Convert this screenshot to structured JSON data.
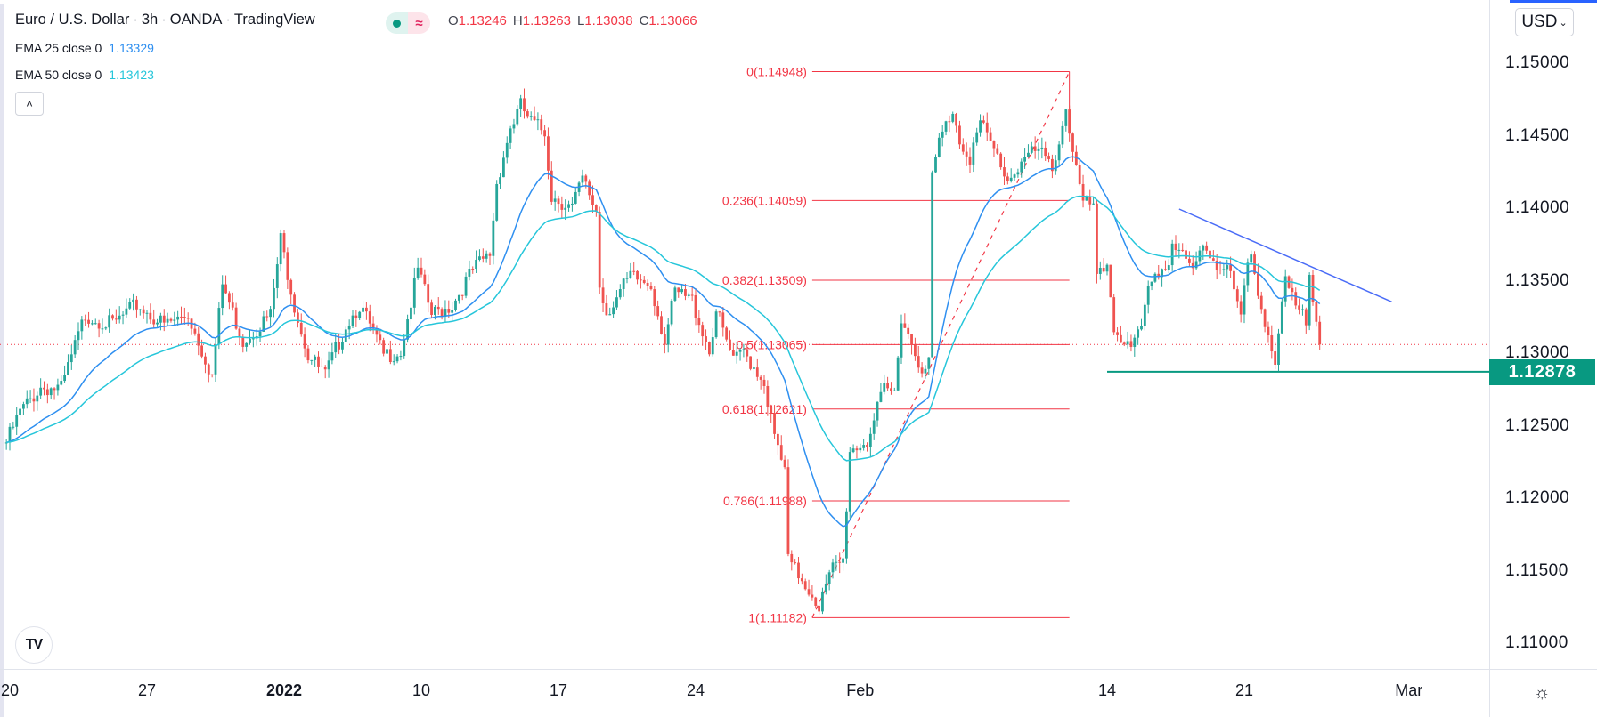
{
  "header": {
    "symbol": "Euro / U.S. Dollar",
    "interval": "3h",
    "exchange": "OANDA",
    "source": "TradingView",
    "separator": "·",
    "status_icon": "market-open-dot",
    "data_icon": "≈",
    "ohlc": [
      {
        "key": "O",
        "value": "1.13246"
      },
      {
        "key": "H",
        "value": "1.13263"
      },
      {
        "key": "L",
        "value": "1.13038"
      },
      {
        "key": "C",
        "value": "1.13066"
      }
    ]
  },
  "indicators": [
    {
      "label": "EMA 25 close 0",
      "value": "1.13329",
      "color": "#2e8ff0"
    },
    {
      "label": "EMA 50 close 0",
      "value": "1.13423",
      "color": "#26c6da"
    }
  ],
  "collapse_button": "˄",
  "currency_button": {
    "label": "USD",
    "chevron": "⌄"
  },
  "settings_icon": "☼",
  "logo": "TV",
  "colors": {
    "up": "#26a69a",
    "down": "#ef5350",
    "fib": "#f23645",
    "trendline": "#4a6cf7",
    "support": "#089981",
    "last_price": "#f23645"
  },
  "chart_data": {
    "type": "candlestick",
    "interval": "3h",
    "price_ticks": [
      "1.15000",
      "1.14500",
      "1.14000",
      "1.13500",
      "1.13000",
      "1.12500",
      "1.12000",
      "1.11500",
      "1.11000"
    ],
    "ylim": [
      1.108,
      1.152
    ],
    "time_ticks": [
      {
        "label": "20",
        "date": "2021-12-20"
      },
      {
        "label": "27",
        "date": "2021-12-27"
      },
      {
        "label": "2022",
        "date": "2022-01-03",
        "bold": true
      },
      {
        "label": "10",
        "date": "2022-01-10"
      },
      {
        "label": "17",
        "date": "2022-01-17"
      },
      {
        "label": "24",
        "date": "2022-01-24"
      },
      {
        "label": "Feb",
        "date": "2022-02-01"
      },
      {
        "label": "14",
        "date": "2022-02-14"
      },
      {
        "label": "21",
        "date": "2022-02-21"
      },
      {
        "label": "Mar",
        "date": "2022-03-01"
      }
    ],
    "approx_close_path": [
      [
        "2021-12-17 21:00",
        1.1239
      ],
      [
        "2021-12-20 09:00",
        1.126
      ],
      [
        "2021-12-21 03:00",
        1.1277
      ],
      [
        "2021-12-21 21:00",
        1.1276
      ],
      [
        "2021-12-22 18:00",
        1.1327
      ],
      [
        "2021-12-23 18:00",
        1.132
      ],
      [
        "2021-12-24 15:00",
        1.1334
      ],
      [
        "2021-12-27 15:00",
        1.132
      ],
      [
        "2021-12-28 12:00",
        1.1327
      ],
      [
        "2021-12-29 09:00",
        1.1285
      ],
      [
        "2021-12-29 18:00",
        1.1348
      ],
      [
        "2021-12-30 12:00",
        1.1309
      ],
      [
        "2021-12-31 12:00",
        1.1327
      ],
      [
        "2021-12-31 21:00",
        1.1379
      ],
      [
        "2022-01-03 09:00",
        1.1334
      ],
      [
        "2022-01-03 21:00",
        1.1299
      ],
      [
        "2022-01-04 12:00",
        1.1285
      ],
      [
        "2022-01-05 06:00",
        1.132
      ],
      [
        "2022-01-05 18:00",
        1.1334
      ],
      [
        "2022-01-06 15:00",
        1.1299
      ],
      [
        "2022-01-07 06:00",
        1.1302
      ],
      [
        "2022-01-07 21:00",
        1.1358
      ],
      [
        "2022-01-10 09:00",
        1.1327
      ],
      [
        "2022-01-11 03:00",
        1.1334
      ],
      [
        "2022-01-11 21:00",
        1.1358
      ],
      [
        "2022-01-12 12:00",
        1.1369
      ],
      [
        "2022-01-12 18:00",
        1.1418
      ],
      [
        "2022-01-13 06:00",
        1.1456
      ],
      [
        "2022-01-13 15:00",
        1.1471
      ],
      [
        "2022-01-14 00:00",
        1.146
      ],
      [
        "2022-01-14 12:00",
        1.1453
      ],
      [
        "2022-01-14 18:00",
        1.1409
      ],
      [
        "2022-01-17 12:00",
        1.1401
      ],
      [
        "2022-01-17 21:00",
        1.142
      ],
      [
        "2022-01-18 09:00",
        1.1399
      ],
      [
        "2022-01-18 12:00",
        1.1347
      ],
      [
        "2022-01-18 18:00",
        1.1329
      ],
      [
        "2022-01-19 15:00",
        1.1353
      ],
      [
        "2022-01-20 09:00",
        1.1348
      ],
      [
        "2022-01-20 21:00",
        1.1309
      ],
      [
        "2022-01-21 06:00",
        1.1342
      ],
      [
        "2022-01-21 21:00",
        1.1337
      ],
      [
        "2022-01-24 12:00",
        1.1302
      ],
      [
        "2022-01-24 18:00",
        1.133
      ],
      [
        "2022-01-25 09:00",
        1.1294
      ],
      [
        "2022-01-25 18:00",
        1.1302
      ],
      [
        "2022-01-26 12:00",
        1.1281
      ],
      [
        "2022-01-26 21:00",
        1.1242
      ],
      [
        "2022-01-27 06:00",
        1.1219
      ],
      [
        "2022-01-27 09:00",
        1.1157
      ],
      [
        "2022-01-27 21:00",
        1.1145
      ],
      [
        "2022-01-28 09:00",
        1.1131
      ],
      [
        "2022-01-28 12:00",
        1.1126
      ],
      [
        "2022-01-31 00:00",
        1.1152
      ],
      [
        "2022-01-31 09:00",
        1.1157
      ],
      [
        "2022-01-31 15:00",
        1.1234
      ],
      [
        "2022-02-01 06:00",
        1.124
      ],
      [
        "2022-02-01 21:00",
        1.1275
      ],
      [
        "2022-02-02 06:00",
        1.1273
      ],
      [
        "2022-02-02 12:00",
        1.1327
      ],
      [
        "2022-02-02 21:00",
        1.1307
      ],
      [
        "2022-02-03 09:00",
        1.1286
      ],
      [
        "2022-02-03 12:00",
        1.1294
      ],
      [
        "2022-02-03 15:00",
        1.1423
      ],
      [
        "2022-02-03 21:00",
        1.1446
      ],
      [
        "2022-02-04 09:00",
        1.1469
      ],
      [
        "2022-02-04 15:00",
        1.1448
      ],
      [
        "2022-02-07 00:00",
        1.1436
      ],
      [
        "2022-02-07 09:00",
        1.1459
      ],
      [
        "2022-02-08 00:00",
        1.1436
      ],
      [
        "2022-02-08 09:00",
        1.142
      ],
      [
        "2022-02-09 00:00",
        1.1436
      ],
      [
        "2022-02-09 12:00",
        1.144
      ],
      [
        "2022-02-10 00:00",
        1.1428
      ],
      [
        "2022-02-10 12:00",
        1.1469
      ],
      [
        "2022-02-10 21:00",
        1.1428
      ],
      [
        "2022-02-11 03:00",
        1.1402
      ],
      [
        "2022-02-11 12:00",
        1.1403
      ],
      [
        "2022-02-11 15:00",
        1.135
      ],
      [
        "2022-02-14 00:00",
        1.1362
      ],
      [
        "2022-02-14 06:00",
        1.1319
      ],
      [
        "2022-02-14 21:00",
        1.1301
      ],
      [
        "2022-02-15 06:00",
        1.1317
      ],
      [
        "2022-02-15 15:00",
        1.1354
      ],
      [
        "2022-02-16 06:00",
        1.1362
      ],
      [
        "2022-02-16 09:00",
        1.1377
      ],
      [
        "2022-02-17 03:00",
        1.1356
      ],
      [
        "2022-02-17 12:00",
        1.1377
      ],
      [
        "2022-02-18 00:00",
        1.1362
      ],
      [
        "2022-02-18 09:00",
        1.1362
      ],
      [
        "2022-02-18 21:00",
        1.1325
      ],
      [
        "2022-02-21 03:00",
        1.136
      ],
      [
        "2022-02-21 06:00",
        1.1368
      ],
      [
        "2022-02-21 15:00",
        1.1334
      ],
      [
        "2022-02-22 03:00",
        1.1293
      ],
      [
        "2022-02-22 12:00",
        1.135
      ],
      [
        "2022-02-22 21:00",
        1.1331
      ],
      [
        "2022-02-23 06:00",
        1.1323
      ],
      [
        "2022-02-23 09:00",
        1.1355
      ],
      [
        "2022-02-23 15:00",
        1.1328
      ],
      [
        "2022-02-23 18:00",
        1.13066
      ]
    ],
    "last_price": 1.13066,
    "ema_periods": [
      25,
      50
    ],
    "fibonacci": {
      "from": {
        "date": "2022-01-28 06:00",
        "price": 1.11182
      },
      "to": {
        "date": "2022-02-10 15:00",
        "price": 1.14948
      },
      "levels": [
        {
          "label": "0(1.14948)",
          "price": 1.14948
        },
        {
          "label": "0.236(1.14059)",
          "price": 1.14059
        },
        {
          "label": "0.382(1.13509)",
          "price": 1.13509
        },
        {
          "label": "0.5(1.13065)",
          "price": 1.13065
        },
        {
          "label": "0.618(1.12621)",
          "price": 1.12621
        },
        {
          "label": "0.786(1.11988)",
          "price": 1.11988
        },
        {
          "label": "1(1.11182)",
          "price": 1.11182
        }
      ]
    },
    "trendline": {
      "from": {
        "date": "2022-02-16 15:00",
        "price": 1.14
      },
      "to": {
        "date": "2022-02-28 09:00",
        "price": 1.1336
      }
    },
    "support": {
      "from_date": "2022-02-14 00:00",
      "price": 1.12878,
      "label": "1.12878"
    }
  }
}
